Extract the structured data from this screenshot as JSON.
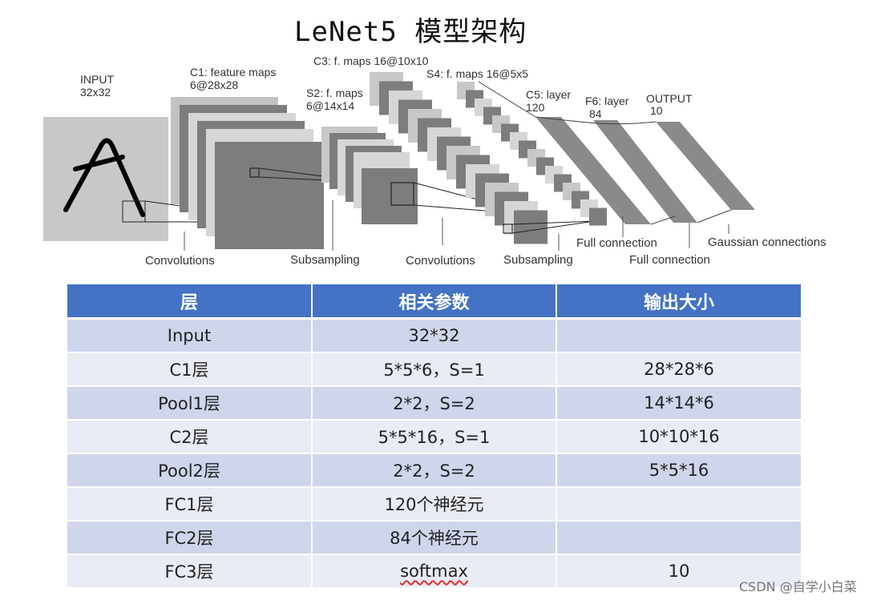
{
  "title": "LeNet5 模型架构",
  "diagram": {
    "input_label": "INPUT",
    "input_size": "32x32",
    "c1_label": "C1: feature maps",
    "c1_size": "6@28x28",
    "c3_label": "C3: f. maps 16@10x10",
    "s2_label": "S2: f. maps",
    "s2_size": "6@14x14",
    "s4_label": "S4: f. maps 16@5x5",
    "c5_label": "C5: layer",
    "c5_size": "120",
    "f6_label": "F6: layer",
    "f6_size": "84",
    "output_label": "OUTPUT",
    "output_size": "10",
    "op_convolutions_1": "Convolutions",
    "op_subsampling_1": "Subsampling",
    "op_convolutions_2": "Convolutions",
    "op_subsampling_2": "Subsampling",
    "op_full_connection_1": "Full connection",
    "op_full_connection_2": "Full connection",
    "op_gaussian": "Gaussian connections"
  },
  "table": {
    "headers": [
      "层",
      "相关参数",
      "输出大小"
    ],
    "rows": [
      [
        "Input",
        "32*32",
        ""
      ],
      [
        "C1层",
        "5*5*6，S=1",
        "28*28*6"
      ],
      [
        "Pool1层",
        "2*2，S=2",
        "14*14*6"
      ],
      [
        "C2层",
        "5*5*16，S=1",
        "10*10*16"
      ],
      [
        "Pool2层",
        "2*2，S=2",
        "5*5*16"
      ],
      [
        "FC1层",
        "120个神经元",
        ""
      ],
      [
        "FC2层",
        "84个神经元",
        ""
      ],
      [
        "FC3层",
        "softmax",
        "10"
      ]
    ]
  },
  "watermark": "CSDN @自学小白菜"
}
